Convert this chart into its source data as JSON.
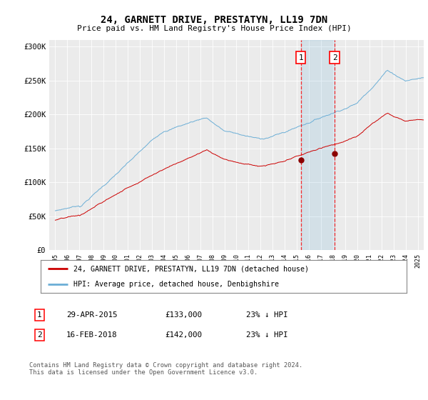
{
  "title": "24, GARNETT DRIVE, PRESTATYN, LL19 7DN",
  "subtitle": "Price paid vs. HM Land Registry's House Price Index (HPI)",
  "legend_line1": "24, GARNETT DRIVE, PRESTATYN, LL19 7DN (detached house)",
  "legend_line2": "HPI: Average price, detached house, Denbighshire",
  "footnote": "Contains HM Land Registry data © Crown copyright and database right 2024.\nThis data is licensed under the Open Government Licence v3.0.",
  "transaction1_date": "29-APR-2015",
  "transaction1_price": "£133,000",
  "transaction1_hpi": "23% ↓ HPI",
  "transaction2_date": "16-FEB-2018",
  "transaction2_price": "£142,000",
  "transaction2_hpi": "23% ↓ HPI",
  "transaction1_x": 2015.33,
  "transaction1_y": 133000,
  "transaction2_x": 2018.12,
  "transaction2_y": 142000,
  "hpi_color": "#6baed6",
  "price_color": "#cc0000",
  "marker_color": "#8b0000",
  "background_color": "#ffffff",
  "plot_bg_color": "#ebebeb",
  "grid_color": "#ffffff",
  "ylim": [
    0,
    310000
  ],
  "xlim": [
    1994.5,
    2025.5
  ],
  "yticks": [
    0,
    50000,
    100000,
    150000,
    200000,
    250000,
    300000
  ],
  "ytick_labels": [
    "£0",
    "£50K",
    "£100K",
    "£150K",
    "£200K",
    "£250K",
    "£300K"
  ],
  "xtick_years": [
    1995,
    1996,
    1997,
    1998,
    1999,
    2000,
    2001,
    2002,
    2003,
    2004,
    2005,
    2006,
    2007,
    2008,
    2009,
    2010,
    2011,
    2012,
    2013,
    2014,
    2015,
    2016,
    2017,
    2018,
    2019,
    2020,
    2021,
    2022,
    2023,
    2024,
    2025
  ]
}
